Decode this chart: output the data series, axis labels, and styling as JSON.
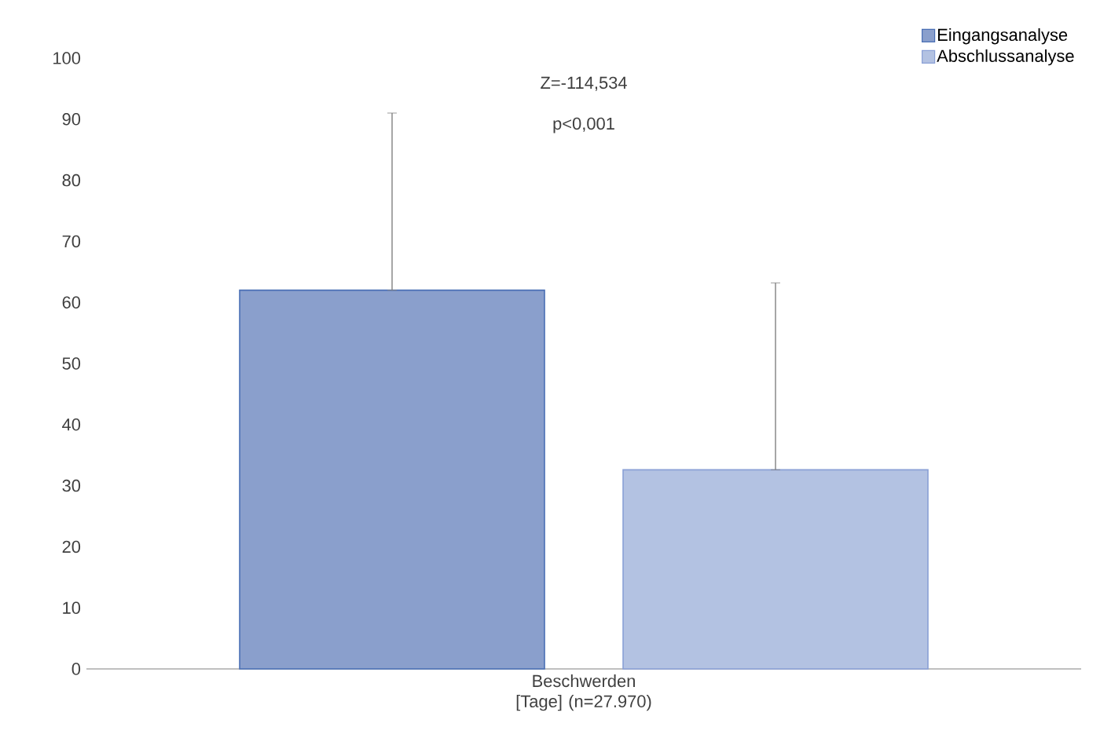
{
  "chart_data": {
    "type": "bar",
    "categories": [
      "Beschwerden [Tage] (n=27.970)"
    ],
    "series": [
      {
        "name": "Eingangsanalyse",
        "color": "#8a9fcc",
        "values": [
          62.0
        ],
        "errors": [
          [
            62.0,
            91.0
          ]
        ]
      },
      {
        "name": "Abschlussanalyse",
        "color": "#b3c2e2",
        "values": [
          32.6
        ],
        "errors": [
          [
            32.6,
            63.2
          ]
        ]
      }
    ],
    "annotations": [
      "Z=-114,534",
      "p<0,001"
    ],
    "ylim": [
      0,
      100
    ],
    "yticks": [
      0,
      10,
      20,
      30,
      40,
      50,
      60,
      70,
      80,
      90,
      100
    ],
    "grid": false,
    "legend": "top right"
  }
}
